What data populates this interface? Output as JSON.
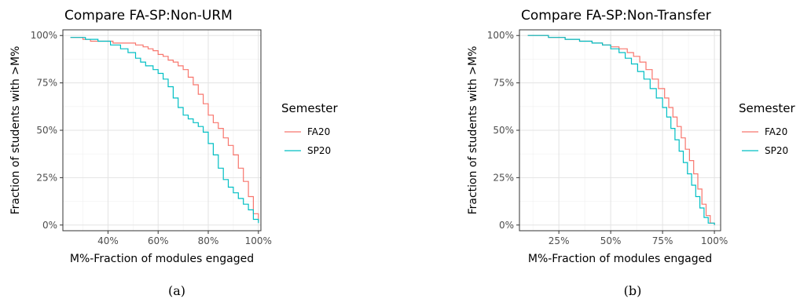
{
  "panels": [
    {
      "caption": "(a)",
      "chart_data": {
        "type": "line",
        "step": true,
        "title": "Compare FA-SP:Non-URM",
        "xlabel": "M%-Fraction of modules engaged",
        "ylabel": "Fraction of students with >M%",
        "xlim": [
          0.22,
          1.01
        ],
        "ylim": [
          -0.03,
          1.03
        ],
        "xticks": [
          0.4,
          0.6,
          0.8,
          1.0
        ],
        "xtick_labels": [
          "40%",
          "60%",
          "80%",
          "100%"
        ],
        "yticks": [
          0,
          0.25,
          0.5,
          0.75,
          1.0
        ],
        "ytick_labels": [
          "0%",
          "25%",
          "50%",
          "75%",
          "100%"
        ],
        "grid": true,
        "legend_title": "Semester",
        "legend_position": "right",
        "series": [
          {
            "name": "FA20",
            "color": "#F8766D",
            "x": [
              0.25,
              0.3,
              0.33,
              0.37,
              0.42,
              0.47,
              0.51,
              0.54,
              0.56,
              0.58,
              0.6,
              0.62,
              0.64,
              0.66,
              0.68,
              0.7,
              0.72,
              0.74,
              0.76,
              0.78,
              0.8,
              0.82,
              0.84,
              0.86,
              0.88,
              0.9,
              0.92,
              0.94,
              0.96,
              0.98,
              1.0
            ],
            "y": [
              0.99,
              0.98,
              0.97,
              0.97,
              0.96,
              0.96,
              0.95,
              0.94,
              0.93,
              0.92,
              0.9,
              0.89,
              0.87,
              0.86,
              0.84,
              0.82,
              0.78,
              0.74,
              0.69,
              0.64,
              0.58,
              0.54,
              0.51,
              0.46,
              0.42,
              0.37,
              0.3,
              0.23,
              0.15,
              0.06,
              0.02
            ]
          },
          {
            "name": "SP20",
            "color": "#00BFC4",
            "x": [
              0.25,
              0.31,
              0.36,
              0.41,
              0.45,
              0.48,
              0.51,
              0.53,
              0.55,
              0.58,
              0.6,
              0.62,
              0.64,
              0.66,
              0.68,
              0.7,
              0.72,
              0.74,
              0.76,
              0.78,
              0.8,
              0.82,
              0.84,
              0.86,
              0.88,
              0.9,
              0.92,
              0.94,
              0.96,
              0.98,
              1.0
            ],
            "y": [
              0.99,
              0.98,
              0.97,
              0.95,
              0.93,
              0.91,
              0.88,
              0.86,
              0.84,
              0.82,
              0.8,
              0.77,
              0.73,
              0.67,
              0.62,
              0.58,
              0.56,
              0.54,
              0.52,
              0.49,
              0.43,
              0.37,
              0.3,
              0.24,
              0.2,
              0.17,
              0.14,
              0.11,
              0.08,
              0.03,
              0.01
            ]
          }
        ]
      }
    },
    {
      "caption": "(b)",
      "chart_data": {
        "type": "line",
        "step": true,
        "title": "Compare FA-SP:Non-Transfer",
        "xlabel": "M%-Fraction of modules engaged",
        "ylabel": "Fraction of students with >M%",
        "xlim": [
          0.06,
          1.03
        ],
        "ylim": [
          -0.03,
          1.03
        ],
        "xticks": [
          0.25,
          0.5,
          0.75,
          1.0
        ],
        "xtick_labels": [
          "25%",
          "50%",
          "75%",
          "100%"
        ],
        "yticks": [
          0,
          0.25,
          0.5,
          0.75,
          1.0
        ],
        "ytick_labels": [
          "0%",
          "25%",
          "50%",
          "75%",
          "100%"
        ],
        "grid": true,
        "legend_title": "Semester",
        "legend_position": "right",
        "series": [
          {
            "name": "FA20",
            "color": "#F8766D",
            "x": [
              0.1,
              0.2,
              0.28,
              0.35,
              0.41,
              0.46,
              0.5,
              0.54,
              0.58,
              0.61,
              0.64,
              0.67,
              0.7,
              0.73,
              0.76,
              0.78,
              0.8,
              0.82,
              0.84,
              0.86,
              0.88,
              0.9,
              0.92,
              0.94,
              0.96,
              0.98,
              1.0
            ],
            "y": [
              1.0,
              0.99,
              0.98,
              0.97,
              0.96,
              0.95,
              0.94,
              0.93,
              0.91,
              0.89,
              0.86,
              0.82,
              0.77,
              0.72,
              0.67,
              0.62,
              0.57,
              0.52,
              0.46,
              0.4,
              0.34,
              0.27,
              0.19,
              0.11,
              0.05,
              0.01,
              0.0
            ]
          },
          {
            "name": "SP20",
            "color": "#00BFC4",
            "x": [
              0.1,
              0.2,
              0.28,
              0.35,
              0.41,
              0.46,
              0.5,
              0.54,
              0.57,
              0.6,
              0.63,
              0.66,
              0.69,
              0.72,
              0.75,
              0.77,
              0.79,
              0.81,
              0.83,
              0.85,
              0.87,
              0.89,
              0.91,
              0.93,
              0.95,
              0.97,
              1.0
            ],
            "y": [
              1.0,
              0.99,
              0.98,
              0.97,
              0.96,
              0.95,
              0.93,
              0.91,
              0.88,
              0.85,
              0.81,
              0.77,
              0.72,
              0.67,
              0.62,
              0.57,
              0.51,
              0.45,
              0.39,
              0.33,
              0.27,
              0.21,
              0.15,
              0.09,
              0.04,
              0.01,
              0.0
            ]
          }
        ]
      }
    }
  ]
}
